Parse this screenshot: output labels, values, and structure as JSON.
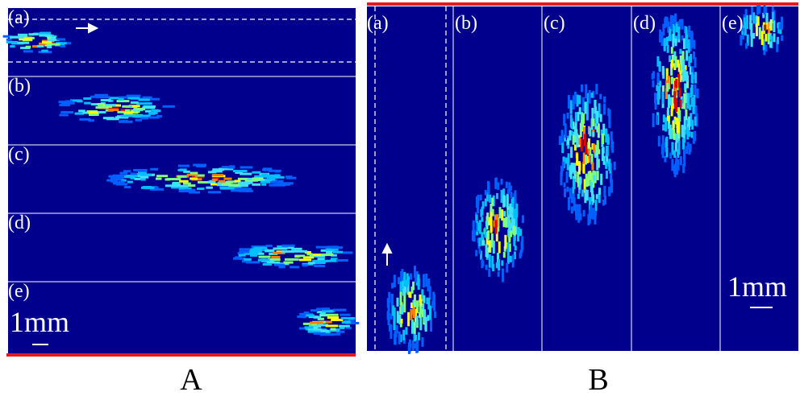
{
  "figure_a": {
    "label": "A",
    "panels": [
      "(a)",
      "(b)",
      "(c)",
      "(d)",
      "(e)"
    ],
    "scale": "1mm"
  },
  "figure_b": {
    "label": "B",
    "panels": [
      "(a)",
      "(b)",
      "(c)",
      "(d)",
      "(e)"
    ],
    "scale": "1mm"
  }
}
